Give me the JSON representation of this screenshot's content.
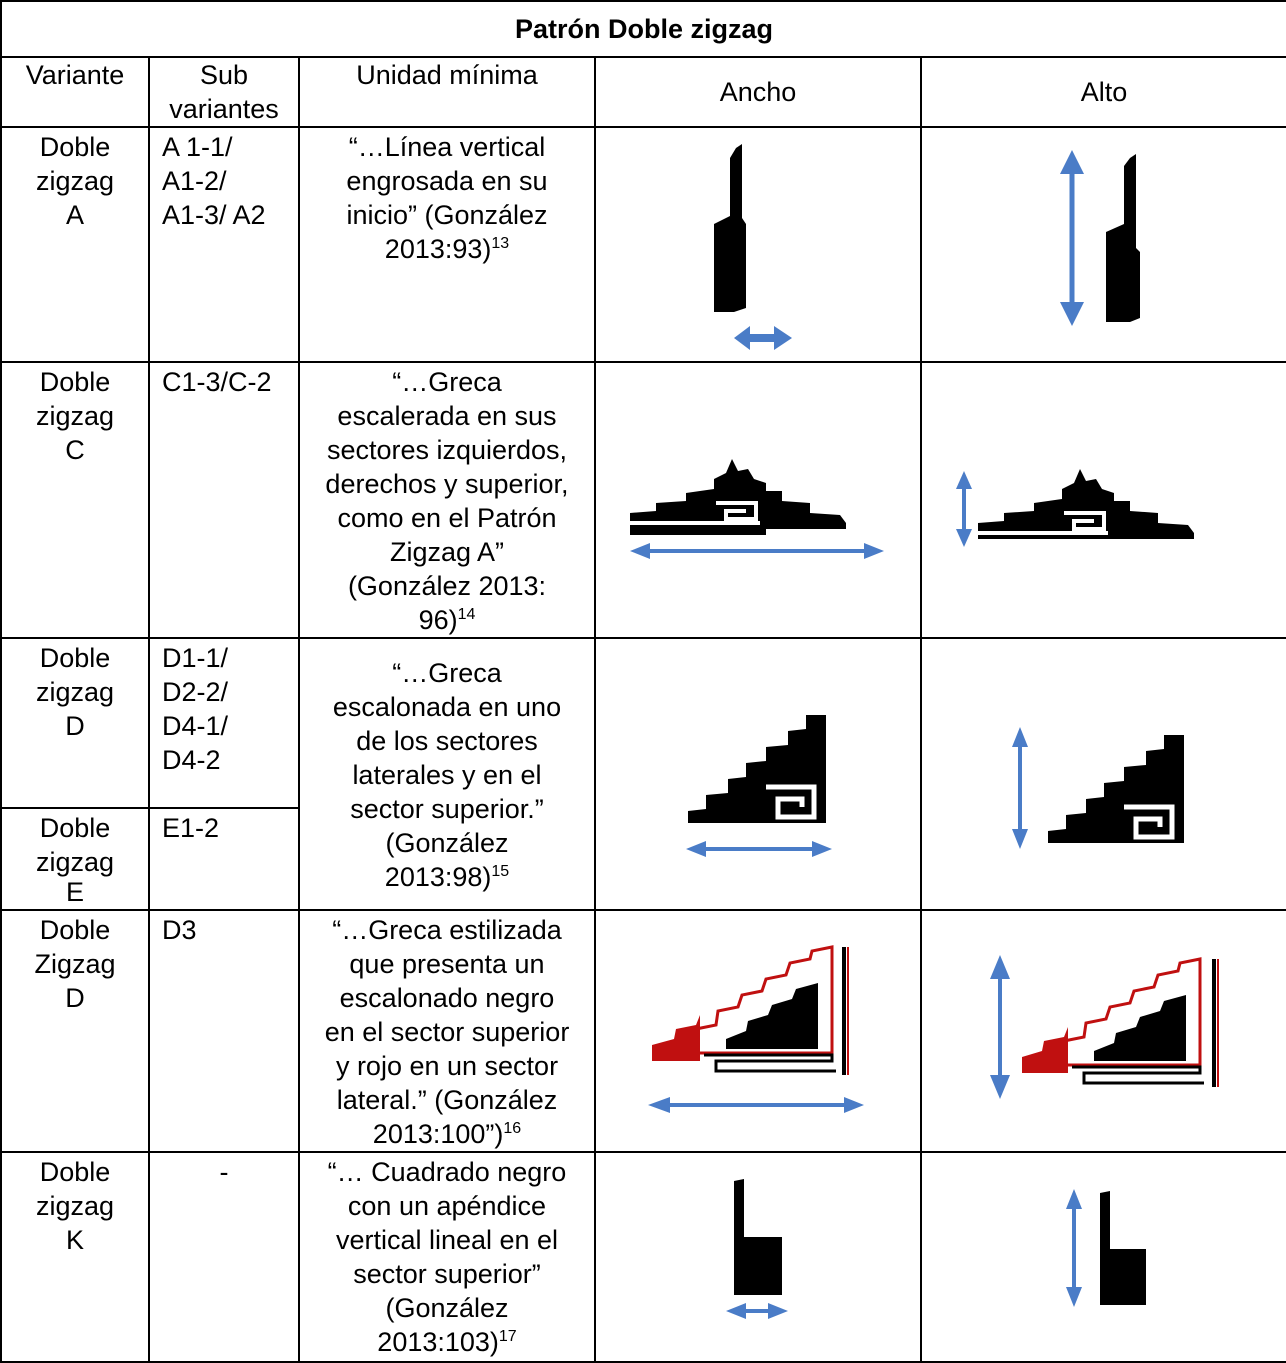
{
  "title": "Patrón Doble zigzag",
  "headers": {
    "variante": "Variante",
    "sub_line1": "Sub",
    "sub_line2": "variantes",
    "unidad": "Unidad mínima",
    "ancho": "Ancho",
    "alto": "Alto"
  },
  "rows": [
    {
      "variante": [
        "Doble",
        "zigzag",
        "A"
      ],
      "sub": [
        "A 1-1/",
        "A1-2/",
        "A1-3/ A2"
      ],
      "unidad": [
        "“…Línea vertical",
        "engrosada en su",
        "inicio” (González",
        "2013:93)"
      ],
      "sup": "13"
    },
    {
      "variante": [
        "Doble",
        "zigzag",
        "C"
      ],
      "sub": [
        "C1-3/C-2"
      ],
      "unidad": [
        "“…Greca",
        "escalerada en sus",
        "sectores izquierdos,",
        "derechos y superior,",
        "como en el Patrón",
        "Zigzag A”",
        "(González 2013:",
        "96)"
      ],
      "sup": "14"
    },
    {
      "variante": [
        "Doble",
        "zigzag",
        "D"
      ],
      "sub": [
        "D1-1/",
        "D2-2/",
        "D4-1/",
        "D4-2"
      ],
      "unidad": [
        "“…Greca",
        "escalonada en uno",
        "de los sectores",
        "laterales y en el",
        "sector superior.”",
        "(González",
        "2013:98)"
      ],
      "sup": "15"
    },
    {
      "variante": [
        "Doble",
        "zigzag",
        "E"
      ],
      "sub": [
        "E1-2"
      ]
    },
    {
      "variante": [
        "Doble",
        "Zigzag",
        "D"
      ],
      "sub": [
        "D3"
      ],
      "unidad": [
        "“…Greca estilizada",
        "que presenta un",
        "escalonado negro",
        "en el sector superior",
        "y rojo en un sector",
        "lateral.” (González",
        "2013:100”)"
      ],
      "sup": "16"
    },
    {
      "variante": [
        "Doble",
        "zigzag",
        "K"
      ],
      "sub": [
        "-"
      ],
      "unidad": [
        "“… Cuadrado negro",
        "con un apéndice",
        "vertical lineal en el",
        "sector superior”",
        "(González",
        "2013:103)"
      ],
      "sup": "17"
    }
  ],
  "colors": {
    "arrow": "#4a7cc7",
    "motif": "#000000",
    "accent_red": "#c01010"
  }
}
